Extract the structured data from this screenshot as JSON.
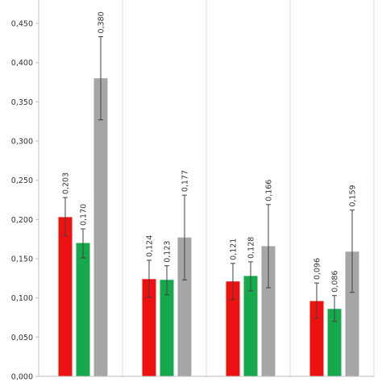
{
  "chart_data": {
    "type": "bar",
    "title": "",
    "xlabel": "",
    "ylabel": "",
    "ylim": [
      0,
      0.45
    ],
    "yticks": [
      "0,000",
      "0,050",
      "0,100",
      "0,150",
      "0,200",
      "0,250",
      "0,300",
      "0,350",
      "0,400",
      "0,450"
    ],
    "ytick_values": [
      0,
      0.05,
      0.1,
      0.15,
      0.2,
      0.25,
      0.3,
      0.35,
      0.4,
      0.45
    ],
    "grid": "vertical-group-dividers",
    "legend": "none",
    "groups": [
      {
        "bars": [
          {
            "value": 0.203,
            "label": "0,203",
            "err_low": 0.179,
            "err_high": 0.228,
            "color": "#ee1111"
          },
          {
            "value": 0.17,
            "label": "0,170",
            "err_low": 0.151,
            "err_high": 0.188,
            "color": "#17a84c"
          },
          {
            "value": 0.38,
            "label": "0,380",
            "err_low": 0.327,
            "err_high": 0.433,
            "color": "#a6a6a6"
          }
        ]
      },
      {
        "bars": [
          {
            "value": 0.124,
            "label": "0,124",
            "err_low": 0.101,
            "err_high": 0.148,
            "color": "#ee1111"
          },
          {
            "value": 0.123,
            "label": "0,123",
            "err_low": 0.104,
            "err_high": 0.141,
            "color": "#17a84c"
          },
          {
            "value": 0.177,
            "label": "0,177",
            "err_low": 0.123,
            "err_high": 0.231,
            "color": "#a6a6a6"
          }
        ]
      },
      {
        "bars": [
          {
            "value": 0.121,
            "label": "0,121",
            "err_low": 0.098,
            "err_high": 0.144,
            "color": "#ee1111"
          },
          {
            "value": 0.128,
            "label": "0,128",
            "err_low": 0.109,
            "err_high": 0.146,
            "color": "#17a84c"
          },
          {
            "value": 0.166,
            "label": "0,166",
            "err_low": 0.113,
            "err_high": 0.219,
            "color": "#a6a6a6"
          }
        ]
      },
      {
        "bars": [
          {
            "value": 0.096,
            "label": "0,096",
            "err_low": 0.074,
            "err_high": 0.119,
            "color": "#ee1111"
          },
          {
            "value": 0.086,
            "label": "0,086",
            "err_low": 0.07,
            "err_high": 0.103,
            "color": "#17a84c"
          },
          {
            "value": 0.159,
            "label": "0,159",
            "err_low": 0.107,
            "err_high": 0.212,
            "color": "#a6a6a6"
          }
        ]
      }
    ]
  }
}
